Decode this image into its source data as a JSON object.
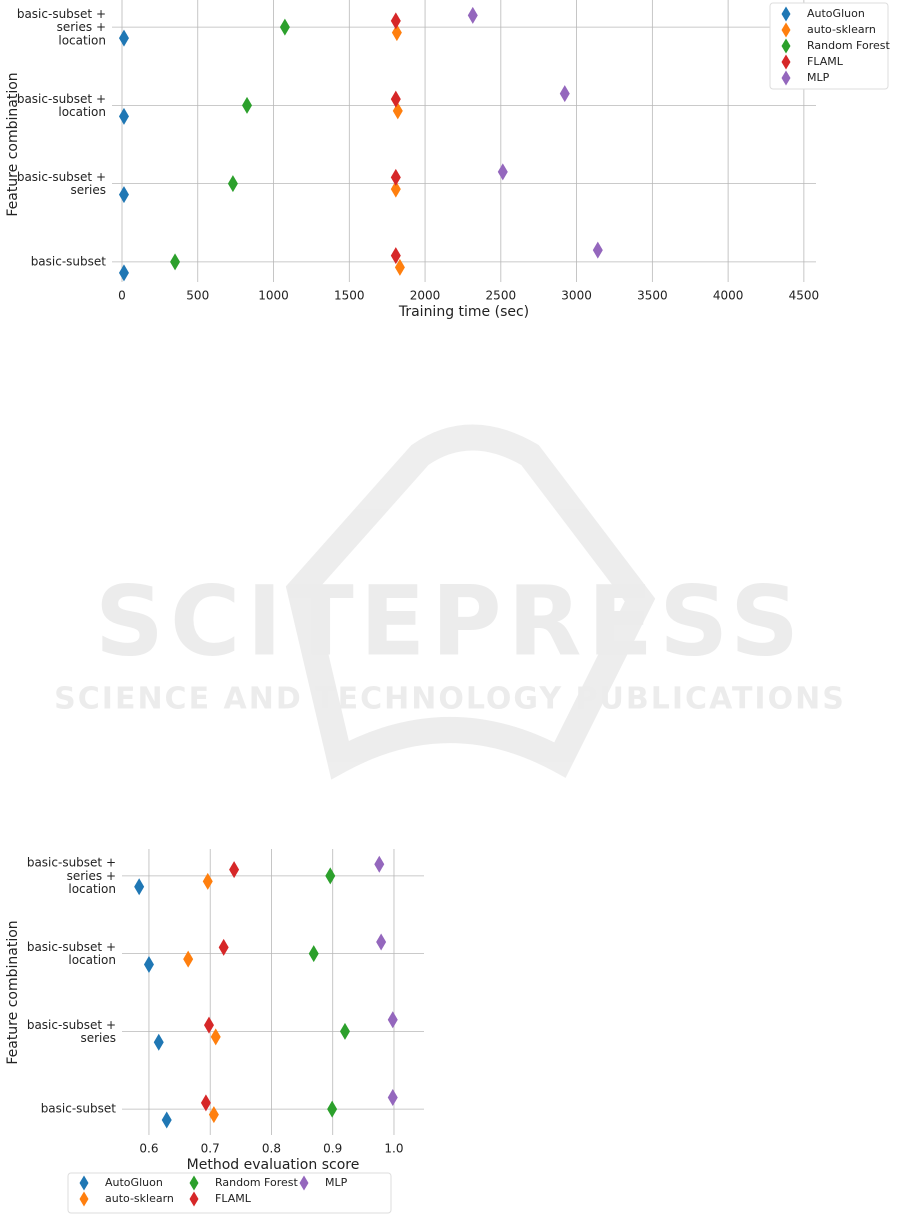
{
  "chart_data": [
    {
      "type": "strip",
      "xlabel": "Training time (sec)",
      "ylabel": "Feature combination",
      "categories": [
        "basic-subset +\nseries +\nlocation",
        "basic-subset +\nlocation",
        "basic-subset +\nseries",
        "basic-subset"
      ],
      "xlim": [
        -66,
        4580
      ],
      "xticks": [
        0,
        500,
        1000,
        1500,
        2000,
        2500,
        3000,
        3500,
        4000,
        4500
      ],
      "grid": true,
      "legend": "upper right",
      "series": [
        {
          "name": "AutoGluon",
          "color": "#1f77b4",
          "values": [
            13,
            13,
            13,
            13
          ]
        },
        {
          "name": "auto-sklearn",
          "color": "#ff7f0e",
          "values": [
            1814,
            1820,
            1807,
            1834
          ]
        },
        {
          "name": "Random Forest",
          "color": "#2ca02c",
          "values": [
            1075,
            825,
            732,
            350
          ]
        },
        {
          "name": "FLAML",
          "color": "#d62728",
          "values": [
            1807,
            1807,
            1807,
            1807
          ]
        },
        {
          "name": "MLP",
          "color": "#9467bd",
          "values": [
            2315,
            2922,
            2513,
            3140
          ]
        }
      ]
    },
    {
      "type": "strip",
      "xlabel": "Method evaluation score",
      "ylabel": "Feature combination",
      "categories": [
        "basic-subset +\nseries +\nlocation",
        "basic-subset +\nlocation",
        "basic-subset +\nseries",
        "basic-subset"
      ],
      "xlim": [
        0.556,
        1.049
      ],
      "xticks": [
        0.6,
        0.7,
        0.8,
        0.9,
        {
          "value": 1,
          "label": "1.0"
        }
      ],
      "grid": true,
      "legend": "lower center",
      "series": [
        {
          "name": "AutoGluon",
          "color": "#1f77b4",
          "values": [
            0.584,
            0.6,
            0.616,
            0.629
          ]
        },
        {
          "name": "auto-sklearn",
          "color": "#ff7f0e",
          "values": [
            0.696,
            0.664,
            0.709,
            0.706
          ]
        },
        {
          "name": "Random Forest",
          "color": "#2ca02c",
          "values": [
            0.896,
            0.869,
            0.92,
            0.899
          ]
        },
        {
          "name": "FLAML",
          "color": "#d62728",
          "values": [
            0.739,
            0.722,
            0.698,
            0.693
          ]
        },
        {
          "name": "MLP",
          "color": "#9467bd",
          "values": [
            0.976,
            0.979,
            0.998,
            0.998
          ]
        }
      ]
    }
  ],
  "watermark": {
    "title": "SCITEPRESS",
    "subtitle": "SCIENCE AND TECHNOLOGY PUBLICATIONS"
  }
}
